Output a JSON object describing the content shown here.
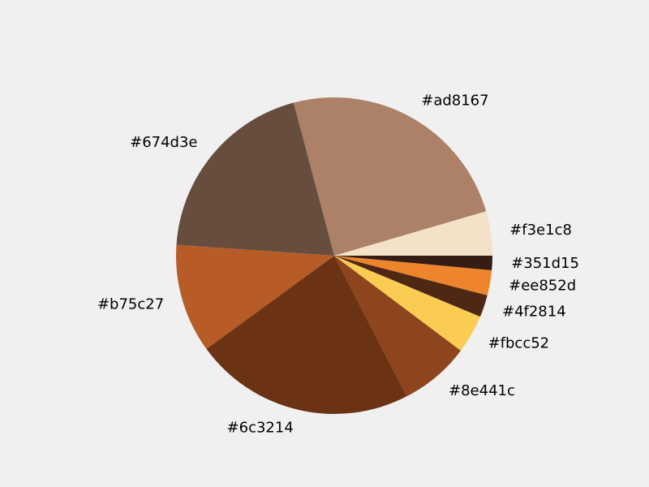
{
  "chart_data": {
    "type": "pie",
    "start_angle_deg": 0,
    "direction": "counterclockwise",
    "background": "#f0f0f0",
    "legend": "none",
    "slices": [
      {
        "label": "#f3e1c8",
        "value": 4.6,
        "color": "#f3e1c8"
      },
      {
        "label": "#ad8167",
        "value": 25.0,
        "color": "#ad8167"
      },
      {
        "label": "#674d3e",
        "value": 20.1,
        "color": "#674d3e"
      },
      {
        "label": "#b75c27",
        "value": 11.3,
        "color": "#b75c27"
      },
      {
        "label": "#6c3214",
        "value": 22.9,
        "color": "#6c3214"
      },
      {
        "label": "#8e441c",
        "value": 7.3,
        "color": "#8e441c"
      },
      {
        "label": "#fbcc52",
        "value": 4.0,
        "color": "#fbcc52"
      },
      {
        "label": "#4f2814",
        "value": 2.3,
        "color": "#4f2814"
      },
      {
        "label": "#ee852d",
        "value": 2.6,
        "color": "#ee852d"
      },
      {
        "label": "#351d15",
        "value": 1.5,
        "color": "#351d15"
      }
    ]
  }
}
